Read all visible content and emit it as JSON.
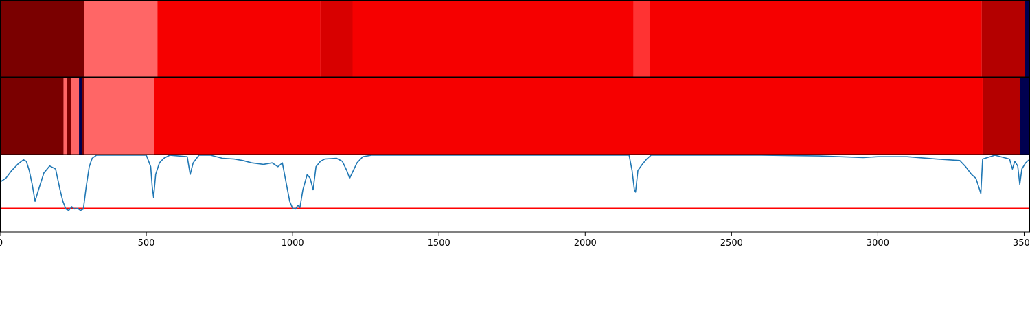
{
  "chart_data": [
    {
      "type": "heatmap",
      "segments": [
        {
          "start": 0,
          "end": 288,
          "color": "#7a0000"
        },
        {
          "start": 288,
          "end": 538,
          "color": "#ff6666"
        },
        {
          "start": 538,
          "end": 1095,
          "color": "#f60000"
        },
        {
          "start": 1095,
          "end": 1205,
          "color": "#d80000"
        },
        {
          "start": 1205,
          "end": 2165,
          "color": "#f60000"
        },
        {
          "start": 2165,
          "end": 2222,
          "color": "#ff3333"
        },
        {
          "start": 2222,
          "end": 3355,
          "color": "#f60000"
        },
        {
          "start": 3355,
          "end": 3503,
          "color": "#b40000"
        },
        {
          "start": 3503,
          "end": 3520,
          "color": "#000050"
        }
      ]
    },
    {
      "type": "heatmap",
      "segments": [
        {
          "start": 0,
          "end": 217,
          "color": "#7a0000"
        },
        {
          "start": 217,
          "end": 230,
          "color": "#ff6666"
        },
        {
          "start": 230,
          "end": 243,
          "color": "#7a0000"
        },
        {
          "start": 243,
          "end": 270,
          "color": "#ff6666"
        },
        {
          "start": 270,
          "end": 280,
          "color": "#000050"
        },
        {
          "start": 280,
          "end": 288,
          "color": "#7a0000"
        },
        {
          "start": 288,
          "end": 527,
          "color": "#ff6666"
        },
        {
          "start": 527,
          "end": 2167,
          "color": "#f60000"
        },
        {
          "start": 2167,
          "end": 3358,
          "color": "#f60000"
        },
        {
          "start": 3358,
          "end": 3485,
          "color": "#b40000"
        },
        {
          "start": 3485,
          "end": 3520,
          "color": "#000050"
        }
      ]
    },
    {
      "type": "line",
      "xlim": [
        0,
        3520
      ],
      "ylim": [
        0,
        1
      ],
      "xticks": [
        0,
        500,
        1000,
        1500,
        2000,
        2500,
        3000,
        3500
      ],
      "threshold": 0.31,
      "series": [
        {
          "color": "#1f77b4",
          "points": [
            [
              0,
              0.65
            ],
            [
              20,
              0.7
            ],
            [
              40,
              0.8
            ],
            [
              60,
              0.88
            ],
            [
              80,
              0.94
            ],
            [
              90,
              0.92
            ],
            [
              100,
              0.8
            ],
            [
              110,
              0.62
            ],
            [
              120,
              0.4
            ],
            [
              130,
              0.53
            ],
            [
              150,
              0.77
            ],
            [
              170,
              0.86
            ],
            [
              190,
              0.82
            ],
            [
              205,
              0.55
            ],
            [
              215,
              0.4
            ],
            [
              225,
              0.3
            ],
            [
              235,
              0.28
            ],
            [
              245,
              0.33
            ],
            [
              255,
              0.3
            ],
            [
              265,
              0.31
            ],
            [
              275,
              0.28
            ],
            [
              285,
              0.3
            ],
            [
              295,
              0.6
            ],
            [
              305,
              0.85
            ],
            [
              315,
              0.96
            ],
            [
              330,
              1.0
            ],
            [
              500,
              1.0
            ],
            [
              515,
              0.85
            ],
            [
              520,
              0.6
            ],
            [
              525,
              0.45
            ],
            [
              532,
              0.75
            ],
            [
              545,
              0.9
            ],
            [
              560,
              0.96
            ],
            [
              580,
              1.0
            ],
            [
              640,
              0.98
            ],
            [
              650,
              0.75
            ],
            [
              660,
              0.9
            ],
            [
              680,
              1.0
            ],
            [
              720,
              1.0
            ],
            [
              760,
              0.96
            ],
            [
              800,
              0.95
            ],
            [
              830,
              0.93
            ],
            [
              860,
              0.9
            ],
            [
              900,
              0.88
            ],
            [
              930,
              0.9
            ],
            [
              950,
              0.85
            ],
            [
              965,
              0.9
            ],
            [
              980,
              0.6
            ],
            [
              990,
              0.4
            ],
            [
              1000,
              0.31
            ],
            [
              1010,
              0.3
            ],
            [
              1018,
              0.35
            ],
            [
              1025,
              0.32
            ],
            [
              1035,
              0.55
            ],
            [
              1050,
              0.75
            ],
            [
              1060,
              0.7
            ],
            [
              1070,
              0.55
            ],
            [
              1080,
              0.85
            ],
            [
              1095,
              0.92
            ],
            [
              1110,
              0.95
            ],
            [
              1150,
              0.96
            ],
            [
              1170,
              0.92
            ],
            [
              1185,
              0.8
            ],
            [
              1195,
              0.7
            ],
            [
              1205,
              0.78
            ],
            [
              1220,
              0.9
            ],
            [
              1240,
              0.98
            ],
            [
              1270,
              1.0
            ],
            [
              2150,
              1.0
            ],
            [
              2160,
              0.8
            ],
            [
              2168,
              0.55
            ],
            [
              2172,
              0.52
            ],
            [
              2180,
              0.8
            ],
            [
              2195,
              0.88
            ],
            [
              2210,
              0.95
            ],
            [
              2225,
              1.0
            ],
            [
              2600,
              1.0
            ],
            [
              2800,
              0.99
            ],
            [
              2950,
              0.97
            ],
            [
              3000,
              0.98
            ],
            [
              3100,
              0.98
            ],
            [
              3200,
              0.95
            ],
            [
              3280,
              0.93
            ],
            [
              3300,
              0.85
            ],
            [
              3320,
              0.75
            ],
            [
              3335,
              0.7
            ],
            [
              3348,
              0.55
            ],
            [
              3352,
              0.5
            ],
            [
              3358,
              0.95
            ],
            [
              3400,
              1.0
            ],
            [
              3450,
              0.95
            ],
            [
              3460,
              0.82
            ],
            [
              3468,
              0.92
            ],
            [
              3478,
              0.86
            ],
            [
              3485,
              0.62
            ],
            [
              3492,
              0.82
            ],
            [
              3505,
              0.9
            ],
            [
              3520,
              0.95
            ]
          ]
        }
      ]
    }
  ]
}
